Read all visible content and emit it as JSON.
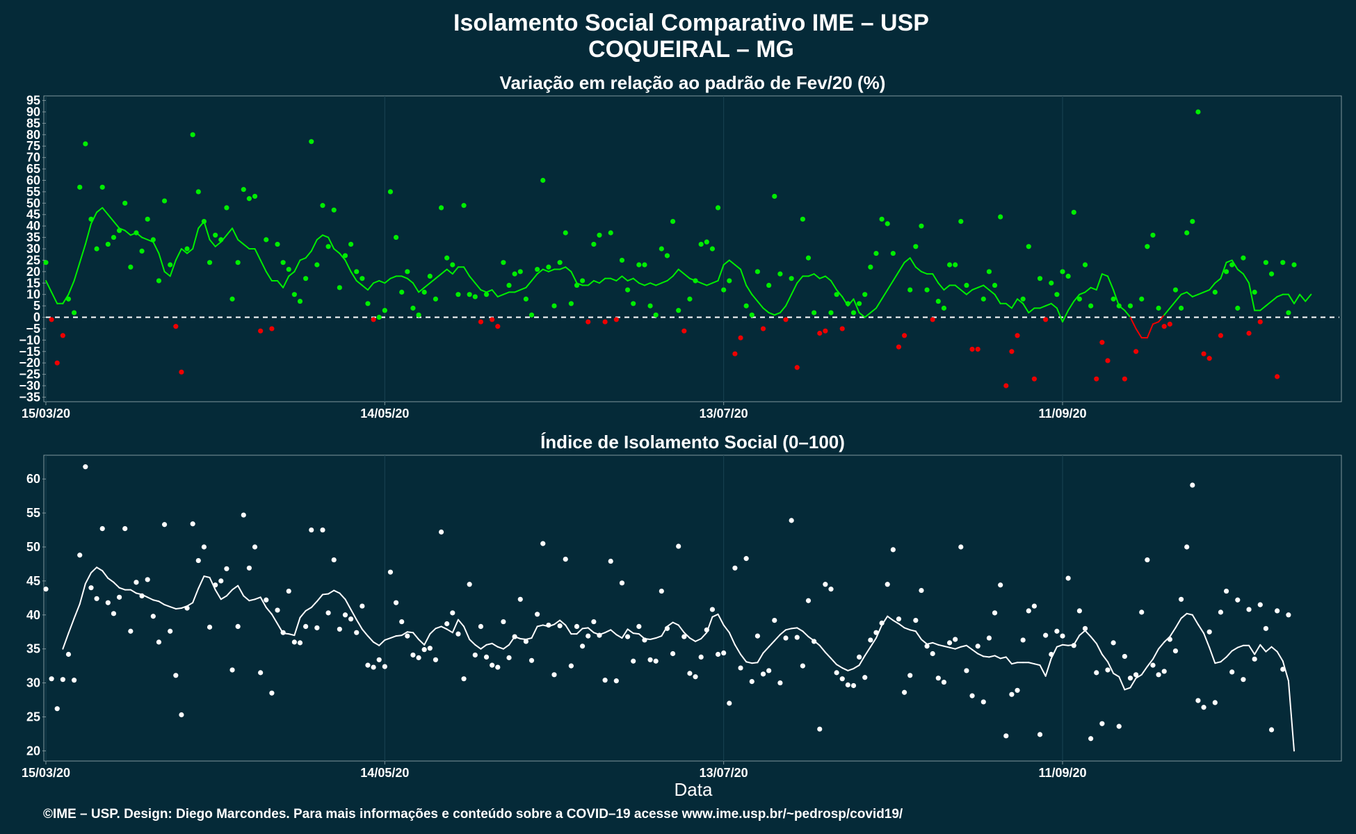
{
  "header": {
    "title": "Isolamento Social Comparativo IME – USP",
    "subtitle": "COQUEIRAL – MG"
  },
  "footer": {
    "credit": "©IME – USP. Design: Diego Marcondes. Para mais informações e conteúdo sobre a COVID–19 acesse www.ime.usp.br/~pedrosp/covid19/"
  },
  "colors": {
    "background": "#052a38",
    "positive": "#00ee00",
    "negative": "#ee0000",
    "index": "#ffffff",
    "frame": "#7f959c"
  },
  "chart_data": [
    {
      "type": "scatter",
      "title": "Variação em relação ao padrão de Fev/20 (%)",
      "xlabel": "",
      "ylabel": "",
      "x_start": "15/03/20",
      "x_ticks": [
        {
          "label": "15/03/20",
          "day": 0
        },
        {
          "label": "14/05/20",
          "day": 60
        },
        {
          "label": "13/07/20",
          "day": 120
        },
        {
          "label": "11/09/20",
          "day": 180
        }
      ],
      "xlim": [
        0,
        229
      ],
      "ylim": [
        -37,
        97
      ],
      "y_ticks": [
        95,
        90,
        85,
        80,
        75,
        70,
        65,
        60,
        55,
        50,
        45,
        40,
        35,
        30,
        25,
        20,
        15,
        10,
        5,
        0,
        -5,
        -10,
        -15,
        -20,
        -25,
        -30,
        -35
      ],
      "reference_line": 0,
      "grid": true,
      "series": [
        {
          "kind": "points",
          "values": [
            24,
            -1,
            -20,
            -8,
            8,
            2,
            57,
            76,
            43,
            30,
            57,
            32,
            35,
            38,
            50,
            22,
            37,
            29,
            43,
            34,
            16,
            51,
            23,
            -4,
            -24,
            30,
            80,
            55,
            42,
            24,
            36,
            34,
            48,
            8,
            24,
            56,
            52,
            53,
            -6,
            34,
            -5,
            32,
            24,
            21,
            10,
            7,
            17,
            77,
            23,
            49,
            31,
            47,
            13,
            27,
            32,
            20,
            17,
            6,
            -1,
            0,
            3,
            55,
            35,
            11,
            20,
            4,
            1,
            11,
            18,
            8,
            48,
            26,
            23,
            10,
            49,
            10,
            9,
            -2,
            10,
            -1,
            -4,
            24,
            14,
            19,
            20,
            8,
            1,
            21,
            60,
            22,
            5,
            24,
            37,
            6,
            14,
            16,
            -2,
            32,
            36,
            -2,
            37,
            -1,
            25,
            12,
            6,
            23,
            23,
            5,
            1,
            30,
            27,
            42,
            3,
            -6,
            8,
            16,
            32,
            33,
            30,
            48,
            12,
            16,
            -16,
            -9,
            5,
            1,
            20,
            -5,
            14,
            53,
            19,
            -1,
            17,
            -22,
            43,
            26,
            2,
            -7,
            -6,
            2,
            10,
            -5,
            6,
            2,
            6,
            10,
            22,
            28,
            43,
            41,
            28,
            -13,
            -8,
            12,
            31,
            40,
            12,
            -1,
            7,
            4,
            23,
            23,
            42,
            14,
            -14,
            -14,
            8,
            20,
            14,
            44,
            -30,
            -15,
            -8,
            8,
            31,
            -27,
            17,
            -1,
            15,
            10,
            20,
            18,
            46,
            8,
            23,
            5,
            -27,
            -11,
            -19,
            8,
            5,
            -27,
            5,
            -15,
            8,
            31,
            36,
            4,
            -4,
            -3,
            12,
            4,
            37,
            42,
            90,
            -16,
            -18,
            11,
            -8,
            20,
            23,
            4,
            26,
            -7,
            11,
            -2,
            24,
            19,
            -26,
            24,
            2,
            23
          ]
        },
        {
          "kind": "moving_average",
          "values": [
            16,
            11,
            6,
            6,
            10,
            16,
            24,
            32,
            41,
            46,
            48,
            45,
            42,
            39,
            38,
            36,
            37,
            35,
            34,
            33,
            28,
            20,
            18,
            25,
            30,
            28,
            30,
            39,
            42,
            34,
            31,
            33,
            36,
            39,
            34,
            32,
            30,
            30,
            25,
            20,
            16,
            16,
            13,
            18,
            20,
            25,
            26,
            29,
            34,
            36,
            35,
            30,
            28,
            25,
            20,
            16,
            14,
            12,
            15,
            16,
            15,
            17,
            18,
            18,
            17,
            15,
            11,
            13,
            15,
            17,
            19,
            21,
            19,
            22,
            22,
            18,
            15,
            12,
            11,
            12,
            9,
            10,
            11,
            11,
            12,
            13,
            16,
            19,
            21,
            20,
            21,
            21,
            22,
            20,
            15,
            14,
            14,
            16,
            15,
            17,
            17,
            16,
            18,
            16,
            17,
            15,
            14,
            15,
            14,
            15,
            16,
            18,
            21,
            19,
            17,
            16,
            15,
            14,
            15,
            16,
            23,
            25,
            23,
            21,
            14,
            10,
            7,
            4,
            2,
            1,
            2,
            5,
            10,
            15,
            18,
            18,
            19,
            17,
            18,
            16,
            12,
            9,
            5,
            8,
            2,
            0,
            2,
            4,
            8,
            12,
            16,
            20,
            24,
            26,
            22,
            20,
            19,
            19,
            15,
            12,
            14,
            14,
            12,
            10,
            12,
            13,
            14,
            12,
            10,
            6,
            6,
            4,
            8,
            6,
            2,
            4,
            4,
            5,
            6,
            4,
            -2,
            3,
            7,
            10,
            11,
            13,
            12,
            19,
            18,
            12,
            5,
            3,
            0,
            -5,
            -9,
            -9,
            -3,
            -2,
            1,
            4,
            7,
            10,
            11,
            9,
            10,
            11,
            12,
            15,
            17,
            24,
            25,
            21,
            19,
            15,
            3,
            3,
            5,
            7,
            9,
            10,
            10,
            6,
            10,
            7,
            10
          ]
        }
      ]
    },
    {
      "type": "scatter",
      "title": "Índice de Isolamento Social (0–100)",
      "xlabel": "Data",
      "ylabel": "",
      "x_start": "15/03/20",
      "x_ticks": [
        {
          "label": "15/03/20",
          "day": 0
        },
        {
          "label": "14/05/20",
          "day": 60
        },
        {
          "label": "13/07/20",
          "day": 120
        },
        {
          "label": "11/09/20",
          "day": 180
        }
      ],
      "xlim": [
        0,
        229
      ],
      "ylim": [
        18.5,
        63.5
      ],
      "y_ticks": [
        60,
        55,
        50,
        45,
        40,
        35,
        30,
        25,
        20
      ],
      "grid": true,
      "series": [
        {
          "kind": "points",
          "values": [
            43.8,
            30.6,
            26.2,
            30.5,
            34.2,
            30.4,
            48.8,
            61.8,
            44.0,
            42.4,
            52.7,
            41.8,
            40.2,
            42.6,
            52.7,
            37.6,
            44.8,
            42.8,
            45.2,
            39.8,
            36.0,
            53.3,
            37.6,
            31.1,
            25.3,
            41.0,
            53.4,
            48.0,
            50.0,
            38.2,
            44.4,
            45.0,
            46.8,
            31.9,
            38.3,
            54.7,
            46.9,
            50.0,
            31.5,
            42.2,
            28.5,
            40.7,
            37.4,
            43.5,
            36.0,
            35.9,
            38.3,
            52.5,
            38.1,
            52.5,
            40.3,
            48.1,
            37.9,
            40.0,
            39.4,
            37.4,
            41.3,
            32.6,
            32.3,
            33.4,
            32.4,
            46.3,
            41.8,
            39.0,
            36.9,
            34.1,
            33.7,
            34.9,
            35.1,
            33.4,
            52.2,
            38.7,
            40.3,
            37.2,
            30.6,
            44.5,
            34.1,
            38.3,
            33.8,
            32.6,
            32.3,
            39.0,
            33.7,
            36.8,
            42.3,
            36.1,
            33.3,
            40.1,
            50.5,
            38.5,
            31.2,
            38.4,
            48.2,
            32.5,
            38.3,
            35.4,
            36.9,
            39.0,
            37.0,
            30.4,
            47.9,
            30.3,
            44.7,
            36.8,
            33.2,
            38.3,
            36.3,
            33.4,
            33.2,
            43.5,
            38.0,
            34.3,
            50.1,
            36.8,
            31.4,
            30.9,
            33.8,
            37.8,
            40.8,
            34.2,
            34.4,
            27.0,
            46.9,
            32.2,
            48.3,
            30.2,
            36.9,
            31.3,
            31.8,
            39.2,
            30.0,
            36.6,
            53.9,
            36.7,
            32.5,
            42.1,
            36.1,
            23.2,
            44.5,
            43.8,
            31.5,
            30.6,
            29.7,
            29.6,
            33.8,
            30.8,
            36.3,
            37.4,
            38.8,
            44.5,
            49.6,
            39.4,
            28.6,
            31.1,
            39.2,
            43.6,
            35.4,
            34.3,
            30.7,
            30.1,
            35.9,
            36.4,
            50.0,
            31.8,
            28.1,
            35.4,
            27.2,
            36.6,
            40.3,
            44.4,
            22.2,
            28.3,
            28.9,
            36.3,
            40.6,
            41.3,
            22.4,
            37.0,
            34.2,
            37.6,
            36.9,
            45.4,
            35.5,
            40.6,
            38.0,
            21.8,
            31.5,
            24.0,
            31.9,
            35.9,
            23.6,
            33.9,
            30.7,
            31.2,
            40.4,
            48.1,
            32.6,
            31.2,
            31.7,
            36.4,
            34.7,
            42.3,
            50.0,
            59.1,
            27.4,
            26.4,
            37.5,
            27.1,
            40.4,
            43.5,
            31.6,
            42.2,
            30.5,
            40.8,
            33.5,
            41.5,
            38.0,
            23.1,
            40.6,
            32.0,
            40.0
          ]
        },
        {
          "kind": "moving_average",
          "start_day": 3,
          "values": [
            35.0,
            37.3,
            39.5,
            41.6,
            44.6,
            46.2,
            47.0,
            46.5,
            45.4,
            44.8,
            44.0,
            43.7,
            43.7,
            43.2,
            43.0,
            42.6,
            42.2,
            42.0,
            41.5,
            41.2,
            40.9,
            41.0,
            41.3,
            41.8,
            43.9,
            45.7,
            45.5,
            43.7,
            42.3,
            42.8,
            43.7,
            44.3,
            42.8,
            42.1,
            42.3,
            42.6,
            41.1,
            40.1,
            38.7,
            37.3,
            37.2,
            37.0,
            39.6,
            40.6,
            41.1,
            42.0,
            43.0,
            43.1,
            43.6,
            43.2,
            42.3,
            40.8,
            39.3,
            37.9,
            36.9,
            36.0,
            35.5,
            36.3,
            36.6,
            36.9,
            37.0,
            37.5,
            37.4,
            36.4,
            35.6,
            37.2,
            38.0,
            38.3,
            37.9,
            37.4,
            39.3,
            38.3,
            36.4,
            35.6,
            35.0,
            35.6,
            35.8,
            35.3,
            35.0,
            35.6,
            36.8,
            36.5,
            36.4,
            36.6,
            38.3,
            38.5,
            38.3,
            38.6,
            39.2,
            38.5,
            37.2,
            37.2,
            38.0,
            38.1,
            37.4,
            37.1,
            37.4,
            37.8,
            37.1,
            36.6,
            37.9,
            37.3,
            37.2,
            36.5,
            36.4,
            36.6,
            36.9,
            38.3,
            38.9,
            38.5,
            37.4,
            36.6,
            36.1,
            36.5,
            37.4,
            39.7,
            40.1,
            38.5,
            37.4,
            35.6,
            34.2,
            33.1,
            32.9,
            33.0,
            34.4,
            35.3,
            36.2,
            37.1,
            37.8,
            38.0,
            38.1,
            37.6,
            36.8,
            36.2,
            35.5,
            34.5,
            33.6,
            32.7,
            32.2,
            31.8,
            32.1,
            32.6,
            34.0,
            35.3,
            36.6,
            38.5,
            39.8,
            39.2,
            38.7,
            38.1,
            37.8,
            37.6,
            36.4,
            35.7,
            35.9,
            35.6,
            35.4,
            35.2,
            35.0,
            35.3,
            35.5,
            34.9,
            34.3,
            33.9,
            33.8,
            34.0,
            33.6,
            33.8,
            32.8,
            33.0,
            33.0,
            33.0,
            32.8,
            32.6,
            31.0,
            33.6,
            35.3,
            35.6,
            35.5,
            35.6,
            37.0,
            37.7,
            36.8,
            35.8,
            34.2,
            33.1,
            31.4,
            30.9,
            29.0,
            29.3,
            30.7,
            31.2,
            32.4,
            33.5,
            35.0,
            36.0,
            36.8,
            38.1,
            39.5,
            40.2,
            40.0,
            38.6,
            37.3,
            35.2,
            32.9,
            33.1,
            33.8,
            34.7,
            35.2,
            35.5,
            35.5,
            34.2,
            35.6,
            34.6,
            35.3,
            34.6,
            33.2,
            30.3,
            20.0
          ]
        }
      ]
    }
  ]
}
